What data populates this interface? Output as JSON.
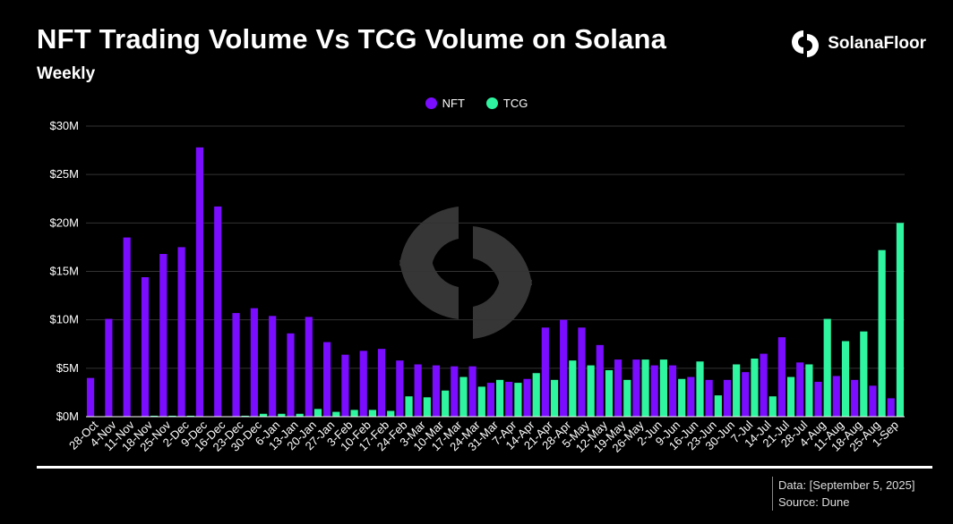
{
  "header": {
    "title": "NFT Trading Volume Vs TCG Volume on Solana",
    "subtitle": "Weekly",
    "brand": "SolanaFloor"
  },
  "footer": {
    "data_note": "Data: [September 5, 2025]",
    "source_note": "Source: Dune"
  },
  "colors": {
    "nft": "#7a0cff",
    "tcg": "#2ff5a0",
    "grid": "#333333",
    "axis": "#ffffff"
  },
  "chart_data": {
    "type": "bar",
    "title": "NFT Trading Volume Vs TCG Volume on Solana",
    "subtitle": "Weekly",
    "xlabel": "",
    "ylabel": "",
    "ylim": [
      0,
      30
    ],
    "y_unit": "$M",
    "y_ticks": [
      0,
      5,
      10,
      15,
      20,
      25,
      30
    ],
    "y_tick_labels": [
      "$0M",
      "$5M",
      "$10M",
      "$15M",
      "$20M",
      "$25M",
      "$30M"
    ],
    "grid": true,
    "legend_position": "top-center",
    "categories": [
      "28-Oct",
      "4-Nov",
      "11-Nov",
      "18-Nov",
      "25-Nov",
      "2-Dec",
      "9-Dec",
      "16-Dec",
      "23-Dec",
      "30-Dec",
      "6-Jan",
      "13-Jan",
      "20-Jan",
      "27-Jan",
      "3-Feb",
      "10-Feb",
      "17-Feb",
      "24-Feb",
      "3-Mar",
      "10-Mar",
      "17-Mar",
      "24-Mar",
      "31-Mar",
      "7-Apr",
      "14-Apr",
      "21-Apr",
      "28-Apr",
      "5-May",
      "12-May",
      "19-May",
      "26-May",
      "2-Jun",
      "9-Jun",
      "16-Jun",
      "23-Jun",
      "30-Jun",
      "7-Jul",
      "14-Jul",
      "21-Jul",
      "28-Jul",
      "4-Aug",
      "11-Aug",
      "18-Aug",
      "25-Aug",
      "1-Sep"
    ],
    "series": [
      {
        "name": "NFT",
        "values": [
          4.0,
          10.1,
          18.5,
          14.4,
          16.8,
          17.5,
          27.8,
          21.7,
          10.7,
          11.2,
          10.4,
          8.6,
          10.3,
          7.7,
          6.4,
          6.8,
          7.0,
          5.8,
          5.4,
          5.3,
          5.2,
          5.2,
          3.5,
          3.6,
          3.9,
          9.2,
          10.0,
          9.2,
          7.4,
          5.9,
          5.9,
          5.3,
          5.3,
          4.1,
          3.8,
          3.8,
          4.6,
          6.5,
          8.2,
          5.6,
          3.6,
          4.2,
          3.8,
          3.2,
          1.9
        ]
      },
      {
        "name": "TCG",
        "values": [
          0.0,
          0.0,
          0.0,
          0.1,
          0.1,
          0.1,
          0.0,
          0.0,
          0.1,
          0.3,
          0.3,
          0.3,
          0.8,
          0.5,
          0.7,
          0.7,
          0.6,
          2.1,
          2.0,
          2.7,
          4.1,
          3.1,
          3.8,
          3.5,
          4.5,
          3.8,
          5.8,
          5.3,
          4.8,
          3.8,
          5.9,
          5.9,
          3.9,
          5.7,
          2.2,
          5.4,
          6.0,
          2.1,
          4.1,
          5.4,
          10.1,
          7.8,
          8.8,
          17.2,
          20.0
        ]
      }
    ]
  }
}
